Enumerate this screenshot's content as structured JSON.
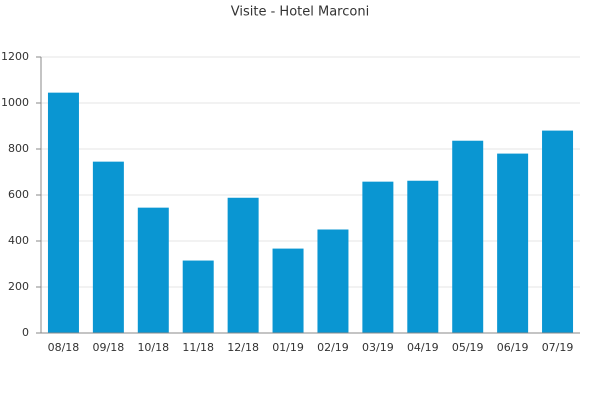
{
  "chart_data": {
    "type": "bar",
    "title": "Visite - Hotel Marconi",
    "categories": [
      "08/18",
      "09/18",
      "10/18",
      "11/18",
      "12/18",
      "01/19",
      "02/19",
      "03/19",
      "04/19",
      "05/19",
      "06/19",
      "07/19"
    ],
    "values": [
      1045,
      745,
      545,
      315,
      588,
      367,
      450,
      658,
      662,
      836,
      780,
      880
    ],
    "color": "#0a96d2",
    "ylim": [
      0,
      1200
    ],
    "yticks": [
      0,
      200,
      400,
      600,
      800,
      1000,
      1200
    ],
    "grid": true
  }
}
